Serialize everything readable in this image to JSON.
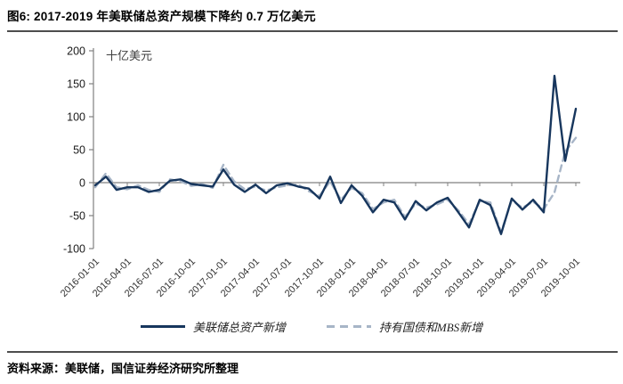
{
  "header": {
    "title": "图6: 2017-2019 年美联储总资产规模下降约 0.7 万亿美元"
  },
  "footer": {
    "source": "资料来源：美联储，国信证券经济研究所整理"
  },
  "colors": {
    "navy": "#17365d",
    "dashed_gray": "#a7b5c7",
    "axis_gray": "#808080",
    "rule_gray": "#4d4d4d",
    "tick_text": "#1a1a1a"
  },
  "chart_data": {
    "type": "line",
    "title": "",
    "unit_label": "十亿美元",
    "xlabel": "",
    "ylabel": "十亿美元",
    "ylim": [
      -100,
      200
    ],
    "y_ticks": [
      200,
      150,
      100,
      50,
      0,
      -50,
      -100
    ],
    "grid": false,
    "legend_position": "bottom",
    "x_tick_labels": [
      "2016-01-01",
      "2016-04-01",
      "2016-07-01",
      "2016-10-01",
      "2017-01-01",
      "2017-04-01",
      "2017-07-01",
      "2017-10-01",
      "2018-01-01",
      "2018-04-01",
      "2018-07-01",
      "2018-10-01",
      "2019-01-01",
      "2019-04-01",
      "2019-07-01",
      "2019-10-01"
    ],
    "x_frequency": "monthly, 2016-01 to 2019-10",
    "series": [
      {
        "name": "美联储总资产新增",
        "style": "solid",
        "color": "#17365d",
        "values": [
          -4,
          9,
          -11,
          -7,
          -7,
          -14,
          -11,
          3,
          5,
          -2,
          -4,
          -6,
          20,
          -3,
          -14,
          -3,
          -16,
          -4,
          -1,
          -6,
          -9,
          -24,
          9,
          -31,
          -4,
          -20,
          -45,
          -26,
          -30,
          -56,
          -28,
          -42,
          -30,
          -23,
          -45,
          -68,
          -26,
          -34,
          -78,
          -24,
          -41,
          -26,
          -45,
          162,
          33,
          112
        ]
      },
      {
        "name": "持有国债和MBS新增",
        "style": "dashed",
        "color": "#a7b5c7",
        "values": [
          -7,
          14,
          -7,
          -10,
          -4,
          -11,
          -14,
          5,
          2,
          -5,
          -2,
          -8,
          27,
          2,
          -10,
          -6,
          -12,
          -7,
          -4,
          -3,
          -13,
          -20,
          2,
          -26,
          -8,
          -16,
          -40,
          -30,
          -26,
          -52,
          -32,
          -38,
          -33,
          -26,
          -42,
          -63,
          -28,
          -30,
          -75,
          -27,
          -38,
          -29,
          -40,
          -15,
          47,
          68
        ]
      }
    ]
  }
}
